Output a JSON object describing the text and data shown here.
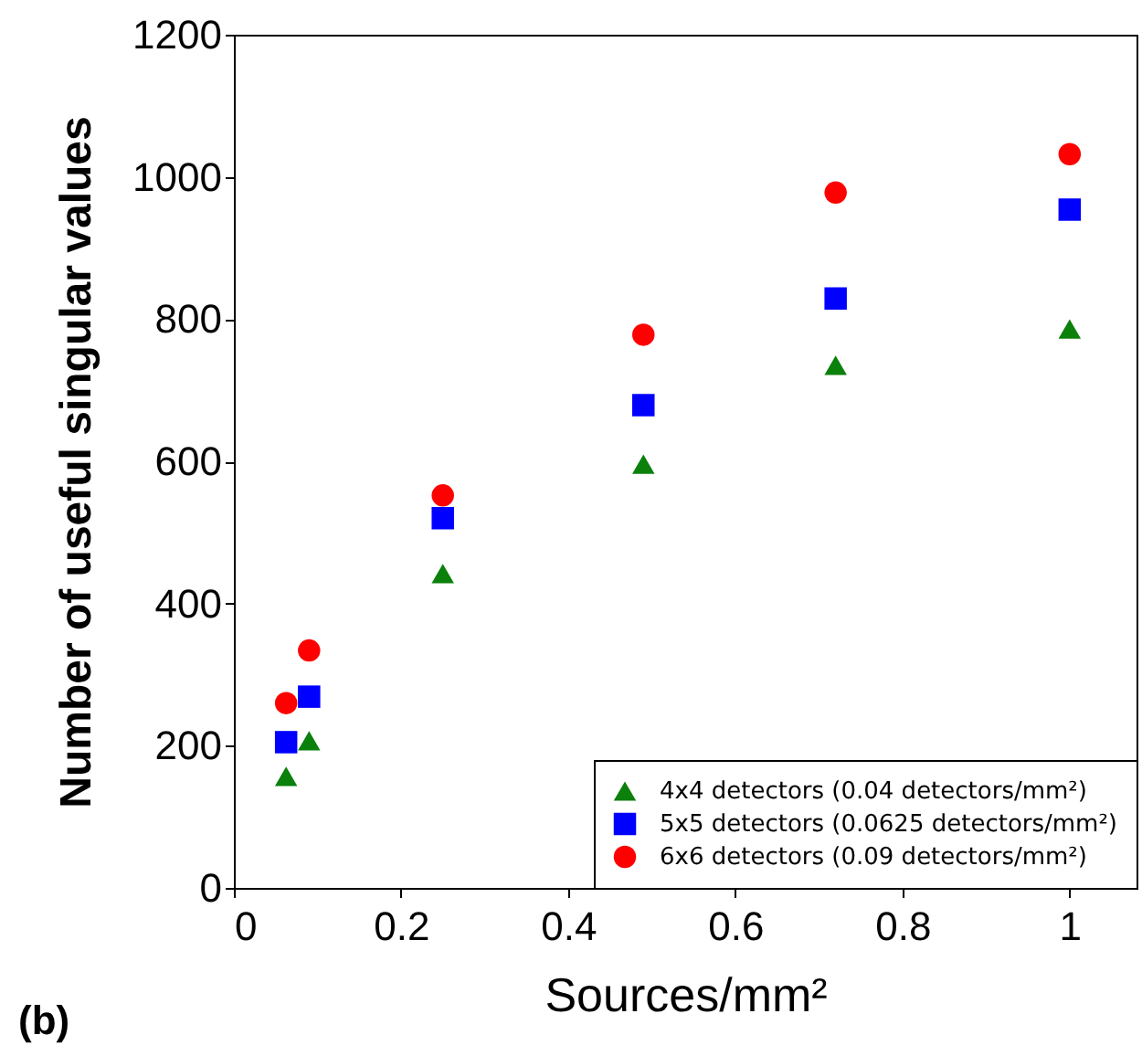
{
  "chart_data": {
    "type": "scatter",
    "xlabel": "Sources/mm²",
    "ylabel": "Number of useful singular values",
    "x": [
      0.0625,
      0.09,
      0.25,
      0.49,
      0.72,
      1
    ],
    "series": [
      {
        "name": "4x4 detectors (0.04 detectors/mm²)",
        "color": "#0b800b",
        "marker": "triangle",
        "values": [
          157,
          207,
          442,
          596,
          735,
          786
        ]
      },
      {
        "name": "5x5 detectors (0.0625 detectors/mm²)",
        "color": "#0000ff",
        "marker": "square",
        "values": [
          205,
          269,
          520,
          679,
          829,
          954
        ]
      },
      {
        "name": "6x6 detectors (0.09 detectors/mm²)",
        "color": "#ff0000",
        "marker": "circle",
        "values": [
          260,
          334,
          552,
          778,
          978,
          1032
        ]
      }
    ],
    "xlim": [
      0,
      1.08
    ],
    "xticks": [
      0,
      0.2,
      0.4,
      0.6,
      0.8,
      1
    ],
    "ylim": [
      0,
      1200
    ],
    "yticks": [
      0,
      200,
      400,
      600,
      800,
      1000,
      1200
    ],
    "grid": false,
    "legend": "bottom right",
    "annotations": [
      "(b)"
    ]
  }
}
